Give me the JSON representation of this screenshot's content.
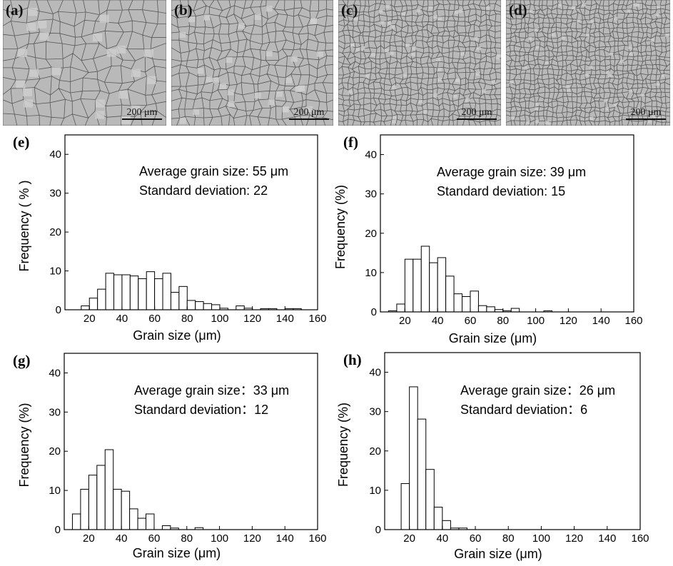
{
  "micrographs": [
    {
      "id": "a",
      "label": "(a)",
      "scale": "200 μm"
    },
    {
      "id": "b",
      "label": "(b)",
      "scale": "200 μm"
    },
    {
      "id": "c",
      "label": "(c)",
      "scale": "200 μm"
    },
    {
      "id": "d",
      "label": "(d)",
      "scale": "200 μm"
    }
  ],
  "colors": {
    "micrograph_bg": "#b9b9b9",
    "grain_boundary": "#3a3a3a",
    "bar_fill": "#ffffff",
    "bar_stroke": "#000000"
  },
  "chart_data": [
    {
      "panel": "(e)",
      "type": "bar",
      "bin_width": 5,
      "xlabel": "Grain size (μm)",
      "ylabel": "Frequency ( % )",
      "xlim": [
        5,
        160
      ],
      "ylim": [
        0,
        45
      ],
      "xticks": [
        20,
        40,
        60,
        80,
        100,
        120,
        140,
        160
      ],
      "yticks": [
        0,
        10,
        20,
        30,
        40
      ],
      "annotation": [
        "Average grain size: 55 μm",
        "Standard deviation: 22"
      ],
      "bins": [
        {
          "x": 17.5,
          "y": 1
        },
        {
          "x": 22.5,
          "y": 3
        },
        {
          "x": 27.5,
          "y": 5.3
        },
        {
          "x": 32.5,
          "y": 9.4
        },
        {
          "x": 37.5,
          "y": 9
        },
        {
          "x": 42.5,
          "y": 9
        },
        {
          "x": 47.5,
          "y": 8.7
        },
        {
          "x": 52.5,
          "y": 8
        },
        {
          "x": 57.5,
          "y": 9.8
        },
        {
          "x": 62.5,
          "y": 8
        },
        {
          "x": 67.5,
          "y": 9.4
        },
        {
          "x": 72.5,
          "y": 4.5
        },
        {
          "x": 77.5,
          "y": 6
        },
        {
          "x": 82.5,
          "y": 2.4
        },
        {
          "x": 87.5,
          "y": 2.1
        },
        {
          "x": 92.5,
          "y": 1.6
        },
        {
          "x": 97.5,
          "y": 1.3
        },
        {
          "x": 102.5,
          "y": 0.4
        },
        {
          "x": 112.5,
          "y": 1
        },
        {
          "x": 117.5,
          "y": 0.4
        },
        {
          "x": 127.5,
          "y": 0.3
        },
        {
          "x": 132.5,
          "y": 0.3
        },
        {
          "x": 142.5,
          "y": 0.3
        },
        {
          "x": 147.5,
          "y": 0.3
        }
      ]
    },
    {
      "panel": "(f)",
      "type": "bar",
      "bin_width": 5,
      "xlabel": "Grain size (μm)",
      "ylabel": "Frequency (%)",
      "xlim": [
        5,
        160
      ],
      "ylim": [
        0,
        45
      ],
      "xticks": [
        20,
        40,
        60,
        80,
        100,
        120,
        140,
        160
      ],
      "yticks": [
        0,
        10,
        20,
        30,
        40
      ],
      "annotation": [
        "Average grain size: 39 μm",
        "Standard deviation: 15"
      ],
      "bins": [
        {
          "x": 12.5,
          "y": 0.3
        },
        {
          "x": 17.5,
          "y": 2
        },
        {
          "x": 22.5,
          "y": 13.4
        },
        {
          "x": 27.5,
          "y": 13.4
        },
        {
          "x": 32.5,
          "y": 16.7
        },
        {
          "x": 37.5,
          "y": 12.5
        },
        {
          "x": 42.5,
          "y": 13.8
        },
        {
          "x": 47.5,
          "y": 9.1
        },
        {
          "x": 52.5,
          "y": 4.6
        },
        {
          "x": 57.5,
          "y": 3.9
        },
        {
          "x": 62.5,
          "y": 5.3
        },
        {
          "x": 67.5,
          "y": 1.6
        },
        {
          "x": 72.5,
          "y": 1.3
        },
        {
          "x": 77.5,
          "y": 0.6
        },
        {
          "x": 82.5,
          "y": 0.3
        },
        {
          "x": 87.5,
          "y": 0.9
        },
        {
          "x": 107.5,
          "y": 0.3
        }
      ]
    },
    {
      "panel": "(g)",
      "type": "bar",
      "bin_width": 5,
      "xlabel": "Grain size (μm)",
      "ylabel": "Frequency (%)",
      "xlim": [
        5,
        160
      ],
      "ylim": [
        0,
        45
      ],
      "xticks": [
        20,
        40,
        60,
        80,
        100,
        120,
        140,
        160
      ],
      "yticks": [
        0,
        10,
        20,
        30,
        40
      ],
      "annotation": [
        "Average grain size：33 μm",
        "Standard deviation：12"
      ],
      "bins": [
        {
          "x": 12.5,
          "y": 4
        },
        {
          "x": 17.5,
          "y": 10.3
        },
        {
          "x": 22.5,
          "y": 13.9
        },
        {
          "x": 27.5,
          "y": 16.4
        },
        {
          "x": 32.5,
          "y": 20.4
        },
        {
          "x": 37.5,
          "y": 10.3
        },
        {
          "x": 42.5,
          "y": 9.8
        },
        {
          "x": 47.5,
          "y": 5.3
        },
        {
          "x": 52.5,
          "y": 2.9
        },
        {
          "x": 57.5,
          "y": 4
        },
        {
          "x": 67.5,
          "y": 1
        },
        {
          "x": 72.5,
          "y": 0.4
        },
        {
          "x": 87.5,
          "y": 0.5
        }
      ]
    },
    {
      "panel": "(h)",
      "type": "bar",
      "bin_width": 5,
      "xlabel": "Grain size (μm)",
      "ylabel": "Frequency (%)",
      "xlim": [
        5,
        160
      ],
      "ylim": [
        0,
        45
      ],
      "xticks": [
        20,
        40,
        60,
        80,
        100,
        120,
        140,
        160
      ],
      "yticks": [
        0,
        10,
        20,
        30,
        40
      ],
      "annotation": [
        "Average grain size：26 μm",
        "Standard deviation：6"
      ],
      "bins": [
        {
          "x": 17.5,
          "y": 11.7
        },
        {
          "x": 22.5,
          "y": 36.3
        },
        {
          "x": 27.5,
          "y": 28.1
        },
        {
          "x": 32.5,
          "y": 15.3
        },
        {
          "x": 37.5,
          "y": 5.7
        },
        {
          "x": 42.5,
          "y": 2.3
        },
        {
          "x": 47.5,
          "y": 0.4
        },
        {
          "x": 52.5,
          "y": 0.4
        }
      ]
    }
  ]
}
